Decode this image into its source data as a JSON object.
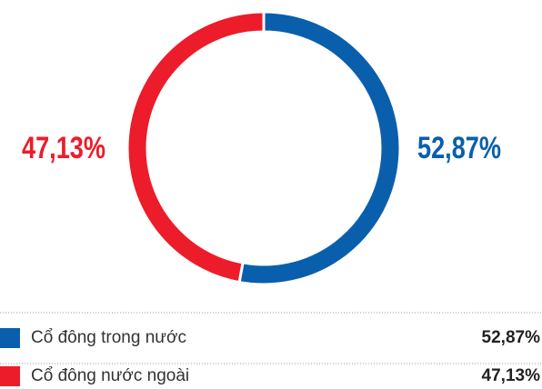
{
  "chart_data": {
    "type": "pie",
    "categories": [
      "Cổ đông trong nước",
      "Cổ đông nước ngoài"
    ],
    "values": [
      52.87,
      47.13
    ],
    "value_labels": [
      "52,87%",
      "47,13%"
    ],
    "colors": [
      "#0a5fad",
      "#ed1c2a"
    ]
  }
}
